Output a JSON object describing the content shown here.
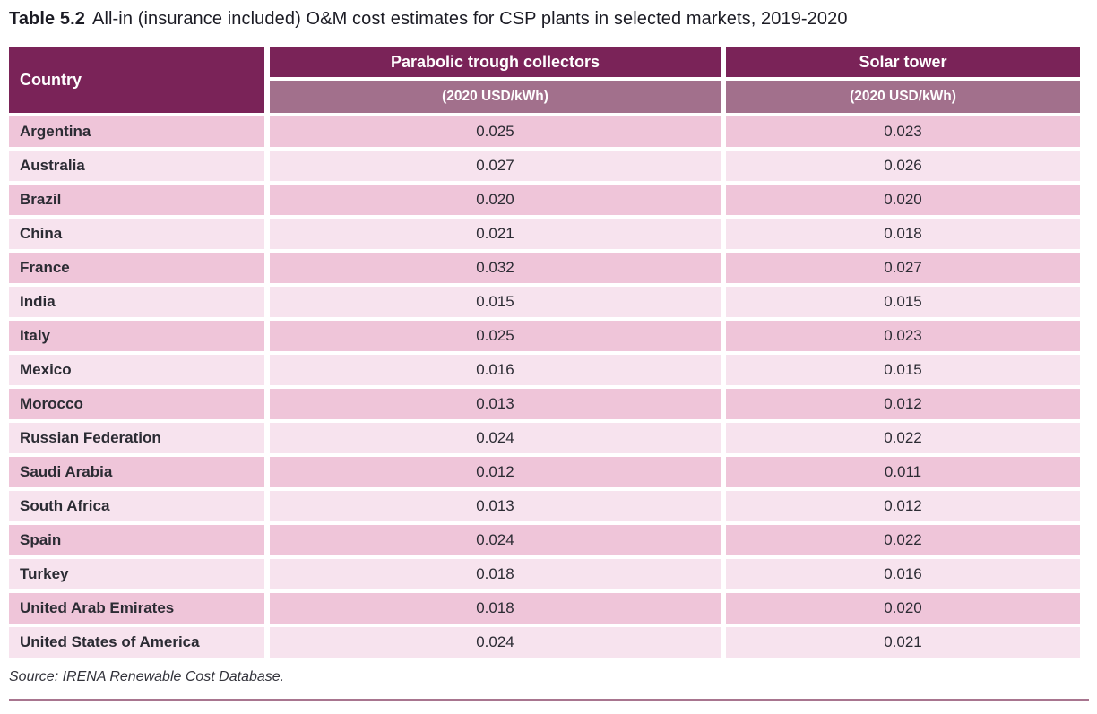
{
  "title": {
    "label": "Table 5.2",
    "text": "All-in (insurance included) O&M cost estimates for CSP plants in selected markets, 2019-2020"
  },
  "table": {
    "country_header": "Country",
    "columns": [
      {
        "title": "Parabolic trough collectors",
        "unit": "(2020 USD/kWh)"
      },
      {
        "title": "Solar tower",
        "unit": "(2020 USD/kWh)"
      }
    ],
    "rows": [
      {
        "country": "Argentina",
        "parabolic_trough": "0.025",
        "solar_tower": "0.023"
      },
      {
        "country": "Australia",
        "parabolic_trough": "0.027",
        "solar_tower": "0.026"
      },
      {
        "country": "Brazil",
        "parabolic_trough": "0.020",
        "solar_tower": "0.020"
      },
      {
        "country": "China",
        "parabolic_trough": "0.021",
        "solar_tower": "0.018"
      },
      {
        "country": "France",
        "parabolic_trough": "0.032",
        "solar_tower": "0.027"
      },
      {
        "country": "India",
        "parabolic_trough": "0.015",
        "solar_tower": "0.015"
      },
      {
        "country": "Italy",
        "parabolic_trough": "0.025",
        "solar_tower": "0.023"
      },
      {
        "country": "Mexico",
        "parabolic_trough": "0.016",
        "solar_tower": "0.015"
      },
      {
        "country": "Morocco",
        "parabolic_trough": "0.013",
        "solar_tower": "0.012"
      },
      {
        "country": "Russian Federation",
        "parabolic_trough": "0.024",
        "solar_tower": "0.022"
      },
      {
        "country": "Saudi Arabia",
        "parabolic_trough": "0.012",
        "solar_tower": "0.011"
      },
      {
        "country": "South Africa",
        "parabolic_trough": "0.013",
        "solar_tower": "0.012"
      },
      {
        "country": "Spain",
        "parabolic_trough": "0.024",
        "solar_tower": "0.022"
      },
      {
        "country": "Turkey",
        "parabolic_trough": "0.018",
        "solar_tower": "0.016"
      },
      {
        "country": "United Arab Emirates",
        "parabolic_trough": "0.018",
        "solar_tower": "0.020"
      },
      {
        "country": "United States of America",
        "parabolic_trough": "0.024",
        "solar_tower": "0.021"
      }
    ]
  },
  "source": "Source: IRENA Renewable Cost Database.",
  "colors": {
    "header_dark": "#7A2358",
    "header_mauve": "#A2708C",
    "row_dark": "#EFC5D9",
    "row_light": "#F7E3EE",
    "rule_color": "#A8758F",
    "caption_color": "#1B1B24",
    "text_main": "#2B2B33"
  }
}
